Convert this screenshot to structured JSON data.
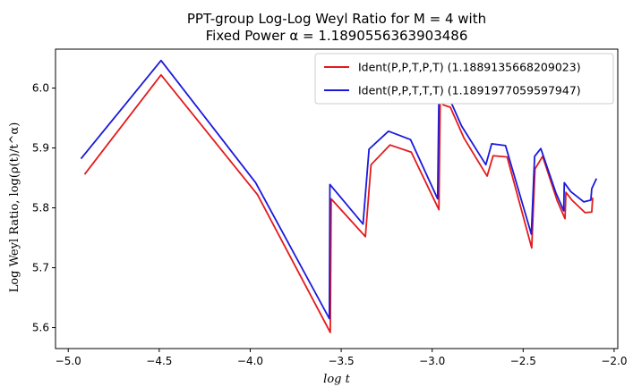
{
  "chart_data": {
    "type": "line",
    "title_line1": "PPT-group Log-Log Weyl Ratio for M = 4 with",
    "title_line2": "Fixed Power α = 1.1890556363903486",
    "xlabel": "log t",
    "ylabel": "Log Weyl Ratio, log(ρ(t)/t^α)",
    "xlim": [
      -5.07,
      -1.98
    ],
    "ylim": [
      5.565,
      6.065
    ],
    "xticks": [
      "−5.0",
      "−4.5",
      "−4.0",
      "−3.5",
      "−3.0",
      "−2.5",
      "−2.0"
    ],
    "xtick_values": [
      -5.0,
      -4.5,
      -4.0,
      -3.5,
      -3.0,
      -2.5,
      -2.0
    ],
    "yticks": [
      "5.6",
      "5.7",
      "5.8",
      "5.9",
      "6.0"
    ],
    "ytick_values": [
      5.6,
      5.7,
      5.8,
      5.9,
      6.0
    ],
    "grid": false,
    "legend_position": "top-right",
    "series": [
      {
        "name": "Ident(P,P,T,P,T) (1.1889135668209023)",
        "color": "#e41a1c",
        "points": [
          [
            -4.91,
            5.856
          ],
          [
            -4.49,
            6.022
          ],
          [
            -3.96,
            5.822
          ],
          [
            -3.56,
            5.592
          ],
          [
            -3.555,
            5.815
          ],
          [
            -3.367,
            5.752
          ],
          [
            -3.336,
            5.872
          ],
          [
            -3.232,
            5.905
          ],
          [
            -3.115,
            5.893
          ],
          [
            -2.963,
            5.797
          ],
          [
            -2.955,
            6.002
          ],
          [
            -2.94,
            5.972
          ],
          [
            -2.9,
            5.968
          ],
          [
            -2.826,
            5.917
          ],
          [
            -2.698,
            5.853
          ],
          [
            -2.665,
            5.887
          ],
          [
            -2.588,
            5.885
          ],
          [
            -2.453,
            5.733
          ],
          [
            -2.435,
            5.865
          ],
          [
            -2.393,
            5.886
          ],
          [
            -2.313,
            5.812
          ],
          [
            -2.27,
            5.782
          ],
          [
            -2.265,
            5.826
          ],
          [
            -2.232,
            5.813
          ],
          [
            -2.16,
            5.792
          ],
          [
            -2.123,
            5.793
          ],
          [
            -2.118,
            5.817
          ]
        ]
      },
      {
        "name": "Ident(P,P,T,T,T) (1.1891977059597947)",
        "color": "#1a1adb",
        "points": [
          [
            -4.93,
            5.882
          ],
          [
            -4.49,
            6.046
          ],
          [
            -3.97,
            5.842
          ],
          [
            -3.565,
            5.615
          ],
          [
            -3.562,
            5.839
          ],
          [
            -3.38,
            5.773
          ],
          [
            -3.347,
            5.898
          ],
          [
            -3.24,
            5.928
          ],
          [
            -3.119,
            5.914
          ],
          [
            -2.97,
            5.815
          ],
          [
            -2.962,
            6.012
          ],
          [
            -2.946,
            5.983
          ],
          [
            -2.9,
            5.979
          ],
          [
            -2.839,
            5.937
          ],
          [
            -2.705,
            5.872
          ],
          [
            -2.673,
            5.907
          ],
          [
            -2.597,
            5.904
          ],
          [
            -2.455,
            5.756
          ],
          [
            -2.437,
            5.886
          ],
          [
            -2.403,
            5.899
          ],
          [
            -2.32,
            5.825
          ],
          [
            -2.277,
            5.795
          ],
          [
            -2.274,
            5.842
          ],
          [
            -2.238,
            5.827
          ],
          [
            -2.167,
            5.81
          ],
          [
            -2.128,
            5.813
          ],
          [
            -2.123,
            5.832
          ],
          [
            -2.097,
            5.849
          ]
        ]
      }
    ]
  }
}
